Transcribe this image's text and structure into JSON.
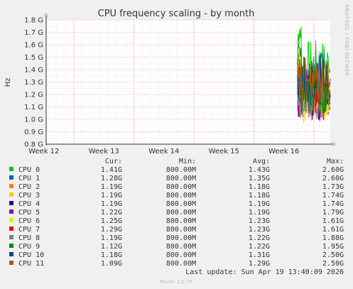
{
  "chart_data": {
    "type": "line",
    "title": "CPU frequency scaling - by month",
    "ylabel": "Hz",
    "ylim": [
      0.8,
      1.8
    ],
    "yticks": [
      "0.8 G",
      "0.9 G",
      "1.0 G",
      "1.1 G",
      "1.2 G",
      "1.3 G",
      "1.4 G",
      "1.5 G",
      "1.6 G",
      "1.7 G",
      "1.8 G"
    ],
    "xticks": [
      "Week 12",
      "Week 13",
      "Week 14",
      "Week 15",
      "Week 16"
    ],
    "grid": true,
    "side_label": "RRDTOOL / TOBI OETIKER",
    "columns": {
      "cur": "Cur:",
      "min": "Min:",
      "avg": "Avg:",
      "max": "Max:"
    },
    "series": [
      {
        "name": "CPU 0",
        "color": "#00cc00",
        "cur": "1.41G",
        "min": "800.00M",
        "avg": "1.43G",
        "max": "2.60G"
      },
      {
        "name": "CPU 1",
        "color": "#0066b3",
        "cur": "1.28G",
        "min": "800.00M",
        "avg": "1.35G",
        "max": "2.60G"
      },
      {
        "name": "CPU 2",
        "color": "#ff8000",
        "cur": "1.19G",
        "min": "800.00M",
        "avg": "1.18G",
        "max": "1.73G"
      },
      {
        "name": "CPU 3",
        "color": "#ffcc00",
        "cur": "1.19G",
        "min": "800.00M",
        "avg": "1.18G",
        "max": "1.74G"
      },
      {
        "name": "CPU 4",
        "color": "#330099",
        "cur": "1.19G",
        "min": "800.00M",
        "avg": "1.19G",
        "max": "1.74G"
      },
      {
        "name": "CPU 5",
        "color": "#990099",
        "cur": "1.22G",
        "min": "800.00M",
        "avg": "1.19G",
        "max": "1.79G"
      },
      {
        "name": "CPU 6",
        "color": "#ccff00",
        "cur": "1.25G",
        "min": "800.00M",
        "avg": "1.23G",
        "max": "1.61G"
      },
      {
        "name": "CPU 7",
        "color": "#ff0000",
        "cur": "1.29G",
        "min": "800.00M",
        "avg": "1.23G",
        "max": "1.61G"
      },
      {
        "name": "CPU 8",
        "color": "#808080",
        "cur": "1.19G",
        "min": "800.00M",
        "avg": "1.22G",
        "max": "1.88G"
      },
      {
        "name": "CPU 9",
        "color": "#008f00",
        "cur": "1.12G",
        "min": "800.00M",
        "avg": "1.22G",
        "max": "1.95G"
      },
      {
        "name": "CPU 10",
        "color": "#00487d",
        "cur": "1.18G",
        "min": "800.00M",
        "avg": "1.31G",
        "max": "2.50G"
      },
      {
        "name": "CPU 11",
        "color": "#b35a00",
        "cur": "1.09G",
        "min": "800.00M",
        "avg": "1.29G",
        "max": "2.50G"
      }
    ],
    "last_update": "Last update: Sun Apr 19 13:40:09 2026",
    "footer": "Munin 2.0.76"
  }
}
